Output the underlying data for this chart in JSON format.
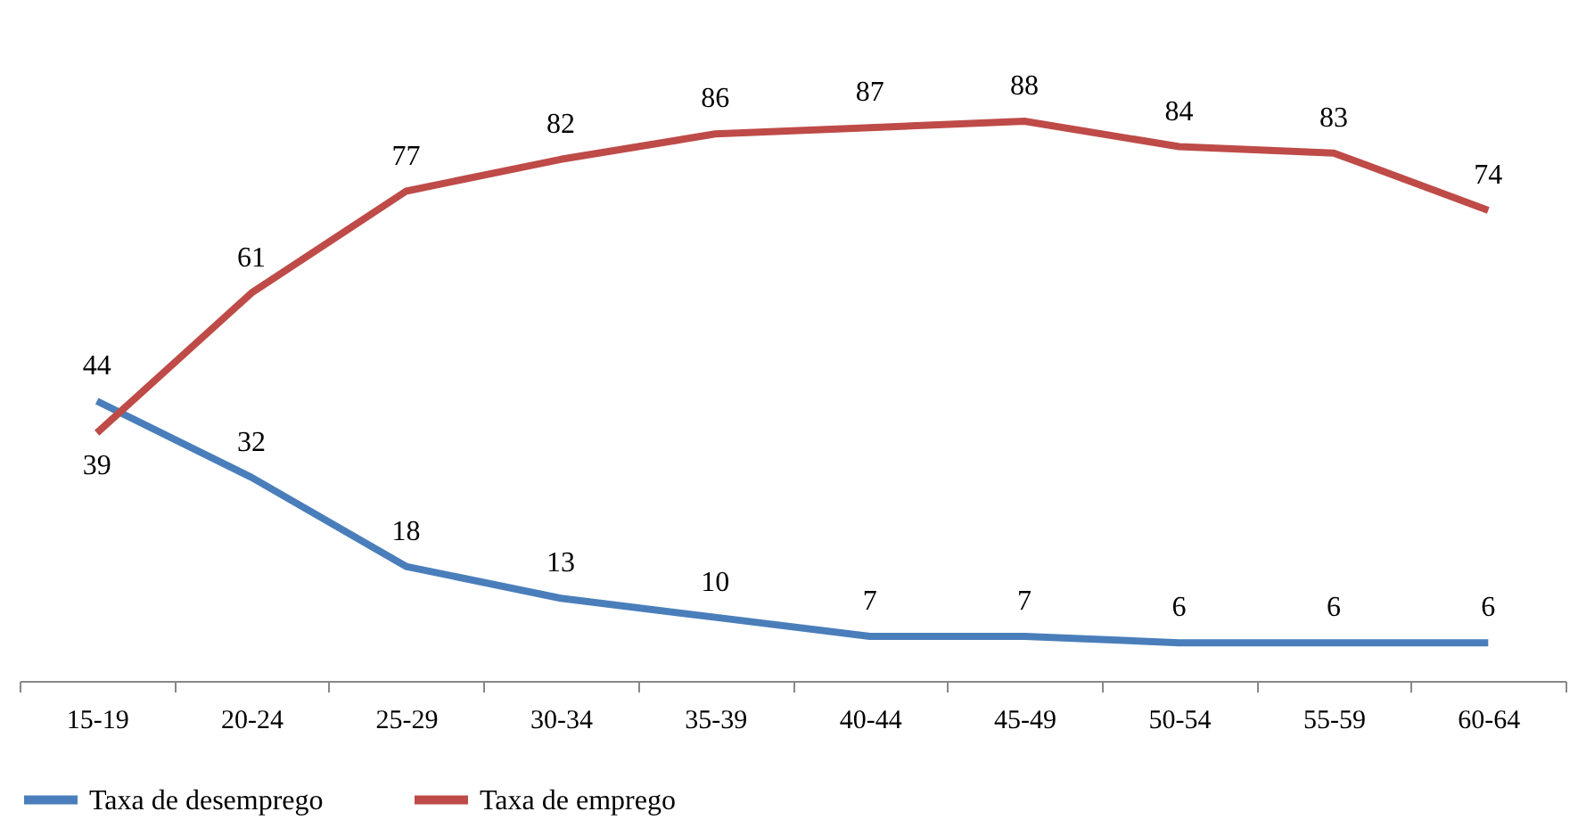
{
  "chart_data": {
    "type": "line",
    "categories": [
      "15-19",
      "20-24",
      "25-29",
      "30-34",
      "35-39",
      "40-44",
      "45-49",
      "50-54",
      "55-59",
      "60-64"
    ],
    "series": [
      {
        "name": "Taxa de desemprego",
        "color": "#4a7ebb",
        "values": [
          44,
          32,
          18,
          13,
          10,
          7,
          7,
          6,
          6,
          6
        ]
      },
      {
        "name": "Taxa de emprego",
        "color": "#be4b48",
        "values": [
          39,
          61,
          77,
          82,
          86,
          87,
          88,
          84,
          83,
          74
        ]
      }
    ],
    "data_labels": true,
    "legend": "bottom"
  }
}
